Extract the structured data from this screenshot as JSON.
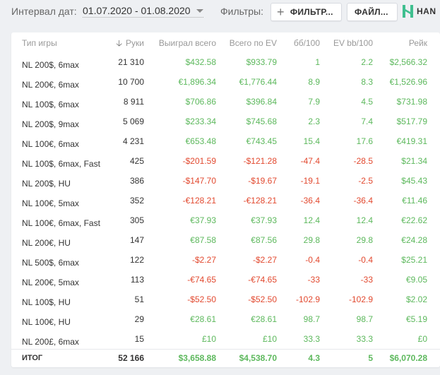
{
  "toolbar": {
    "interval_label": "Интервал дат:",
    "date_range": "01.07.2020 - 01.08.2020",
    "filters_label": "Фильтры:",
    "filter_button": "ФИЛЬТР...",
    "file_button": "ФАЙЛ...",
    "logo_text": "HAN"
  },
  "table": {
    "headers": {
      "type": "Тип игры",
      "hands": "Руки",
      "won": "Выиграл всего",
      "ev": "Всего по EV",
      "bb100": "бб/100",
      "evbb100": "EV bb/100",
      "rake": "Рейк"
    },
    "rows": [
      {
        "type": "NL 200$, 6max",
        "hands": "21 310",
        "won": "$432.58",
        "ev": "$933.79",
        "bb": "1",
        "evbb": "2.2",
        "rake": "$2,566.32",
        "won_s": "pos",
        "ev_s": "pos",
        "bb_s": "pos",
        "evbb_s": "pos"
      },
      {
        "type": "NL 200€, 6max",
        "hands": "10 700",
        "won": "€1,896.34",
        "ev": "€1,776.44",
        "bb": "8.9",
        "evbb": "8.3",
        "rake": "€1,526.96",
        "won_s": "pos",
        "ev_s": "pos",
        "bb_s": "pos",
        "evbb_s": "pos"
      },
      {
        "type": "NL 100$, 6max",
        "hands": "8 911",
        "won": "$706.86",
        "ev": "$396.84",
        "bb": "7.9",
        "evbb": "4.5",
        "rake": "$731.98",
        "won_s": "pos",
        "ev_s": "pos",
        "bb_s": "pos",
        "evbb_s": "pos"
      },
      {
        "type": "NL 200$, 9max",
        "hands": "5 069",
        "won": "$233.34",
        "ev": "$745.68",
        "bb": "2.3",
        "evbb": "7.4",
        "rake": "$517.79",
        "won_s": "pos",
        "ev_s": "pos",
        "bb_s": "pos",
        "evbb_s": "pos"
      },
      {
        "type": "NL 100€, 6max",
        "hands": "4 231",
        "won": "€653.48",
        "ev": "€743.45",
        "bb": "15.4",
        "evbb": "17.6",
        "rake": "€419.31",
        "won_s": "pos",
        "ev_s": "pos",
        "bb_s": "pos",
        "evbb_s": "pos"
      },
      {
        "type": "NL 100$, 6max, Fast",
        "hands": "425",
        "won": "-$201.59",
        "ev": "-$121.28",
        "bb": "-47.4",
        "evbb": "-28.5",
        "rake": "$21.34",
        "won_s": "neg",
        "ev_s": "neg",
        "bb_s": "neg",
        "evbb_s": "neg"
      },
      {
        "type": "NL 200$, HU",
        "hands": "386",
        "won": "-$147.70",
        "ev": "-$19.67",
        "bb": "-19.1",
        "evbb": "-2.5",
        "rake": "$45.43",
        "won_s": "neg",
        "ev_s": "neg",
        "bb_s": "neg",
        "evbb_s": "neg"
      },
      {
        "type": "NL 100€, 5max",
        "hands": "352",
        "won": "-€128.21",
        "ev": "-€128.21",
        "bb": "-36.4",
        "evbb": "-36.4",
        "rake": "€11.46",
        "won_s": "neg",
        "ev_s": "neg",
        "bb_s": "neg",
        "evbb_s": "neg"
      },
      {
        "type": "NL 100€, 6max, Fast",
        "hands": "305",
        "won": "€37.93",
        "ev": "€37.93",
        "bb": "12.4",
        "evbb": "12.4",
        "rake": "€22.62",
        "won_s": "pos",
        "ev_s": "pos",
        "bb_s": "pos",
        "evbb_s": "pos"
      },
      {
        "type": "NL 200€, HU",
        "hands": "147",
        "won": "€87.58",
        "ev": "€87.56",
        "bb": "29.8",
        "evbb": "29.8",
        "rake": "€24.28",
        "won_s": "pos",
        "ev_s": "pos",
        "bb_s": "pos",
        "evbb_s": "pos"
      },
      {
        "type": "NL 500$, 6max",
        "hands": "122",
        "won": "-$2.27",
        "ev": "-$2.27",
        "bb": "-0.4",
        "evbb": "-0.4",
        "rake": "$25.21",
        "won_s": "neg",
        "ev_s": "neg",
        "bb_s": "neg",
        "evbb_s": "neg"
      },
      {
        "type": "NL 200€, 5max",
        "hands": "113",
        "won": "-€74.65",
        "ev": "-€74.65",
        "bb": "-33",
        "evbb": "-33",
        "rake": "€9.05",
        "won_s": "neg",
        "ev_s": "neg",
        "bb_s": "neg",
        "evbb_s": "neg"
      },
      {
        "type": "NL 100$, HU",
        "hands": "51",
        "won": "-$52.50",
        "ev": "-$52.50",
        "bb": "-102.9",
        "evbb": "-102.9",
        "rake": "$2.02",
        "won_s": "neg",
        "ev_s": "neg",
        "bb_s": "neg",
        "evbb_s": "neg"
      },
      {
        "type": "NL 100€, HU",
        "hands": "29",
        "won": "€28.61",
        "ev": "€28.61",
        "bb": "98.7",
        "evbb": "98.7",
        "rake": "€5.19",
        "won_s": "pos",
        "ev_s": "pos",
        "bb_s": "pos",
        "evbb_s": "pos"
      },
      {
        "type": "NL 200£, 6max",
        "hands": "15",
        "won": "£10",
        "ev": "£10",
        "bb": "33.3",
        "evbb": "33.3",
        "rake": "£0",
        "won_s": "pos",
        "ev_s": "pos",
        "bb_s": "pos",
        "evbb_s": "pos"
      }
    ],
    "total": {
      "type": "ИТОГ",
      "hands": "52 166",
      "won": "$3,658.88",
      "ev": "$4,538.70",
      "bb": "4.3",
      "evbb": "5",
      "rake": "$6,070.28"
    }
  },
  "colors": {
    "positive": "#5cb85c",
    "negative": "#e2492f",
    "logo": "#3fbf8f"
  },
  "icons": {
    "sort": "arrow-down-icon",
    "add": "plus-icon",
    "date_dropdown": "caret-down-icon",
    "logo": "hand-logo-icon"
  }
}
